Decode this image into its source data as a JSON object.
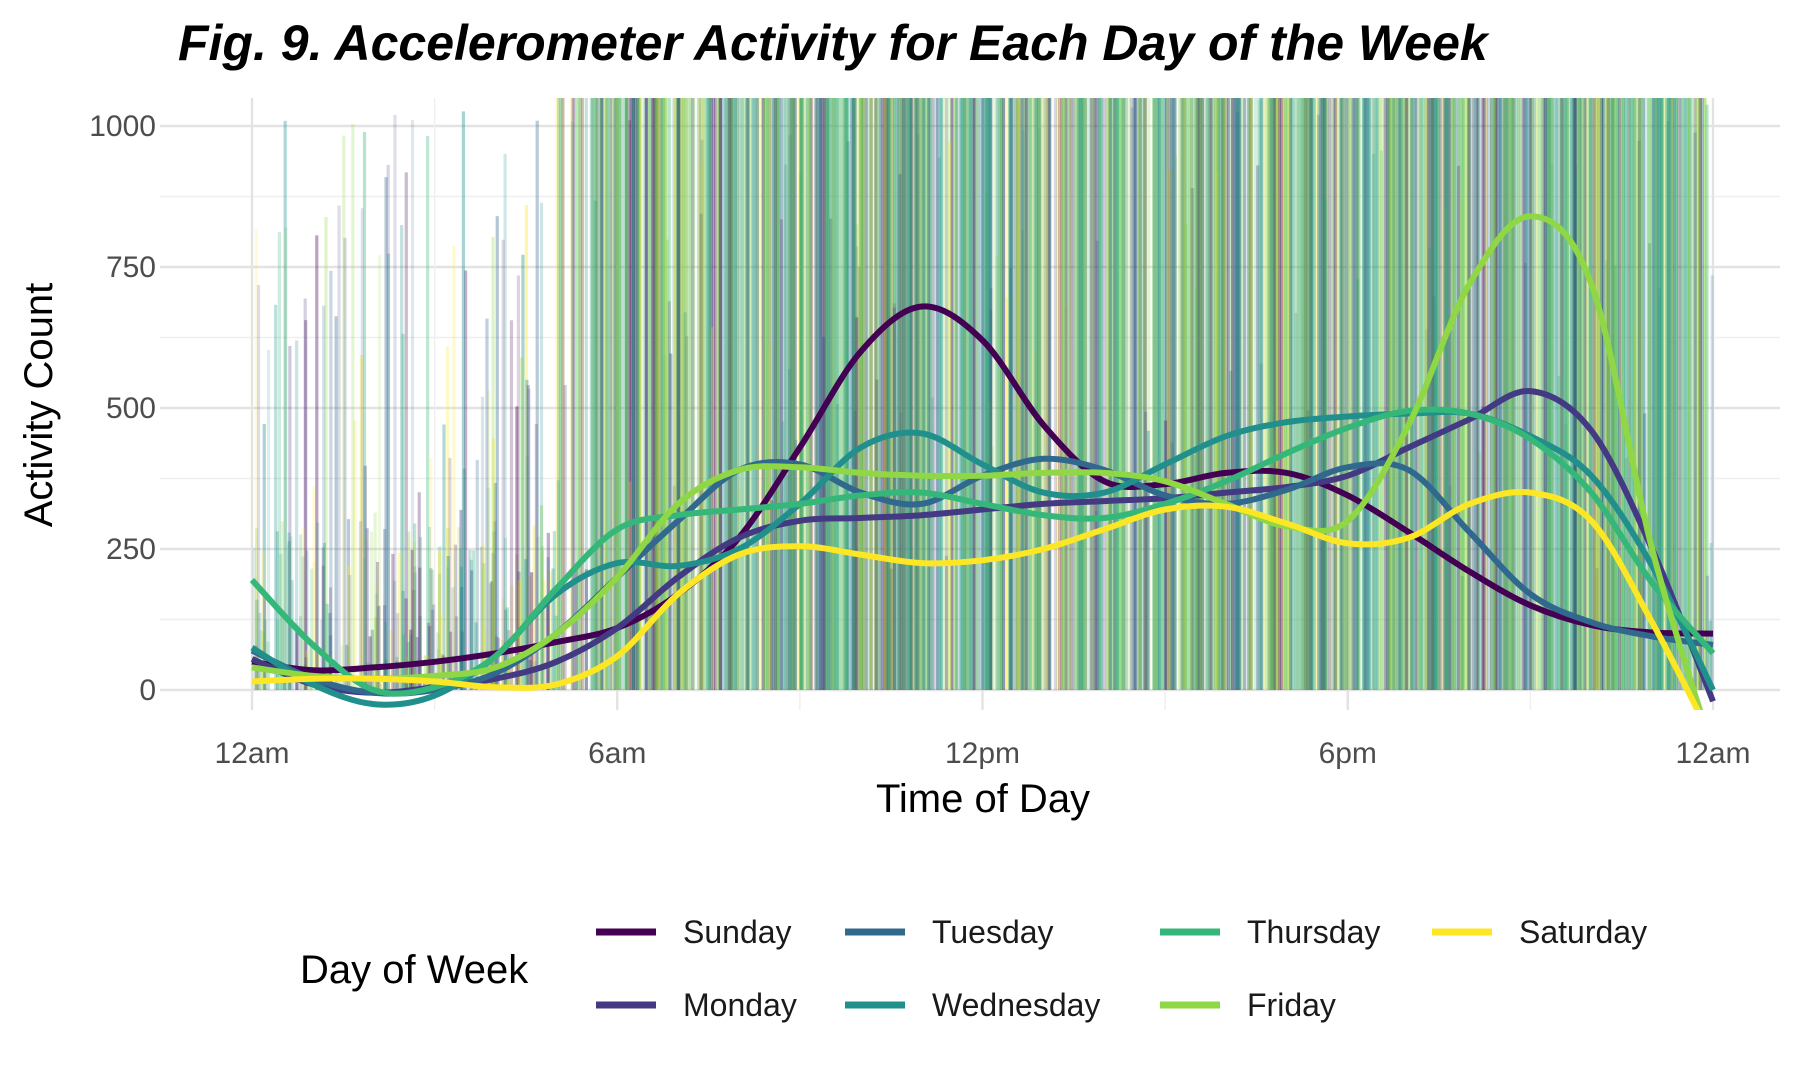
{
  "chart_data": {
    "type": "line",
    "title": "Fig. 9. Accelerometer Activity for Each Day of the Week",
    "xlabel": "Time of Day",
    "ylabel": "Activity Count",
    "xlim": [
      0,
      24
    ],
    "ylim": [
      -50,
      1050
    ],
    "x_ticks": [
      0,
      6,
      12,
      18,
      24
    ],
    "x_tick_labels": [
      "12am",
      "6am",
      "12pm",
      "6pm",
      "12am"
    ],
    "y_ticks": [
      0,
      250,
      500,
      750,
      1000
    ],
    "y_tick_labels": [
      "0",
      "250",
      "500",
      "750",
      "1000"
    ],
    "grid": true,
    "legend_title": "Day of Week",
    "legend_position": "bottom",
    "x": [
      0,
      1,
      2,
      3,
      4,
      5,
      6,
      7,
      8,
      9,
      10,
      11,
      12,
      13,
      14,
      15,
      16,
      17,
      18,
      19,
      20,
      21,
      22,
      23,
      24
    ],
    "series": [
      {
        "name": "Sunday",
        "color": "#440154",
        "values": [
          50,
          35,
          40,
          50,
          65,
          85,
          110,
          170,
          270,
          430,
          600,
          680,
          620,
          470,
          370,
          365,
          385,
          385,
          345,
          280,
          210,
          150,
          115,
          102,
          100
        ]
      },
      {
        "name": "Monday",
        "color": "#443A83",
        "values": [
          55,
          10,
          -5,
          5,
          20,
          50,
          110,
          200,
          270,
          300,
          305,
          310,
          320,
          330,
          335,
          340,
          350,
          360,
          380,
          430,
          480,
          530,
          460,
          250,
          -20
        ]
      },
      {
        "name": "Tuesday",
        "color": "#31688E",
        "values": [
          70,
          20,
          -5,
          0,
          30,
          100,
          200,
          300,
          390,
          400,
          350,
          330,
          380,
          410,
          390,
          345,
          330,
          355,
          395,
          390,
          280,
          170,
          120,
          95,
          80
        ]
      },
      {
        "name": "Wednesday",
        "color": "#21908C",
        "values": [
          75,
          10,
          -25,
          -10,
          60,
          170,
          225,
          220,
          250,
          330,
          430,
          455,
          400,
          350,
          350,
          400,
          450,
          475,
          485,
          490,
          490,
          450,
          380,
          220,
          0
        ]
      },
      {
        "name": "Thursday",
        "color": "#35B779",
        "values": [
          195,
          80,
          0,
          5,
          60,
          180,
          285,
          310,
          320,
          330,
          345,
          350,
          330,
          310,
          305,
          330,
          370,
          420,
          465,
          495,
          490,
          445,
          350,
          190,
          65
        ]
      },
      {
        "name": "Friday",
        "color": "#8FD744",
        "values": [
          40,
          25,
          20,
          25,
          40,
          100,
          200,
          330,
          390,
          395,
          385,
          380,
          380,
          385,
          385,
          370,
          330,
          290,
          300,
          470,
          720,
          840,
          720,
          250,
          -110
        ]
      },
      {
        "name": "Saturday",
        "color": "#FDE725",
        "values": [
          15,
          20,
          20,
          15,
          5,
          10,
          60,
          170,
          240,
          255,
          240,
          225,
          230,
          250,
          285,
          320,
          325,
          295,
          260,
          270,
          330,
          350,
          300,
          120,
          -90
        ]
      }
    ],
    "background_raw_activity": "dense semi-transparent vertical bars per day color behind smoothed lines"
  }
}
